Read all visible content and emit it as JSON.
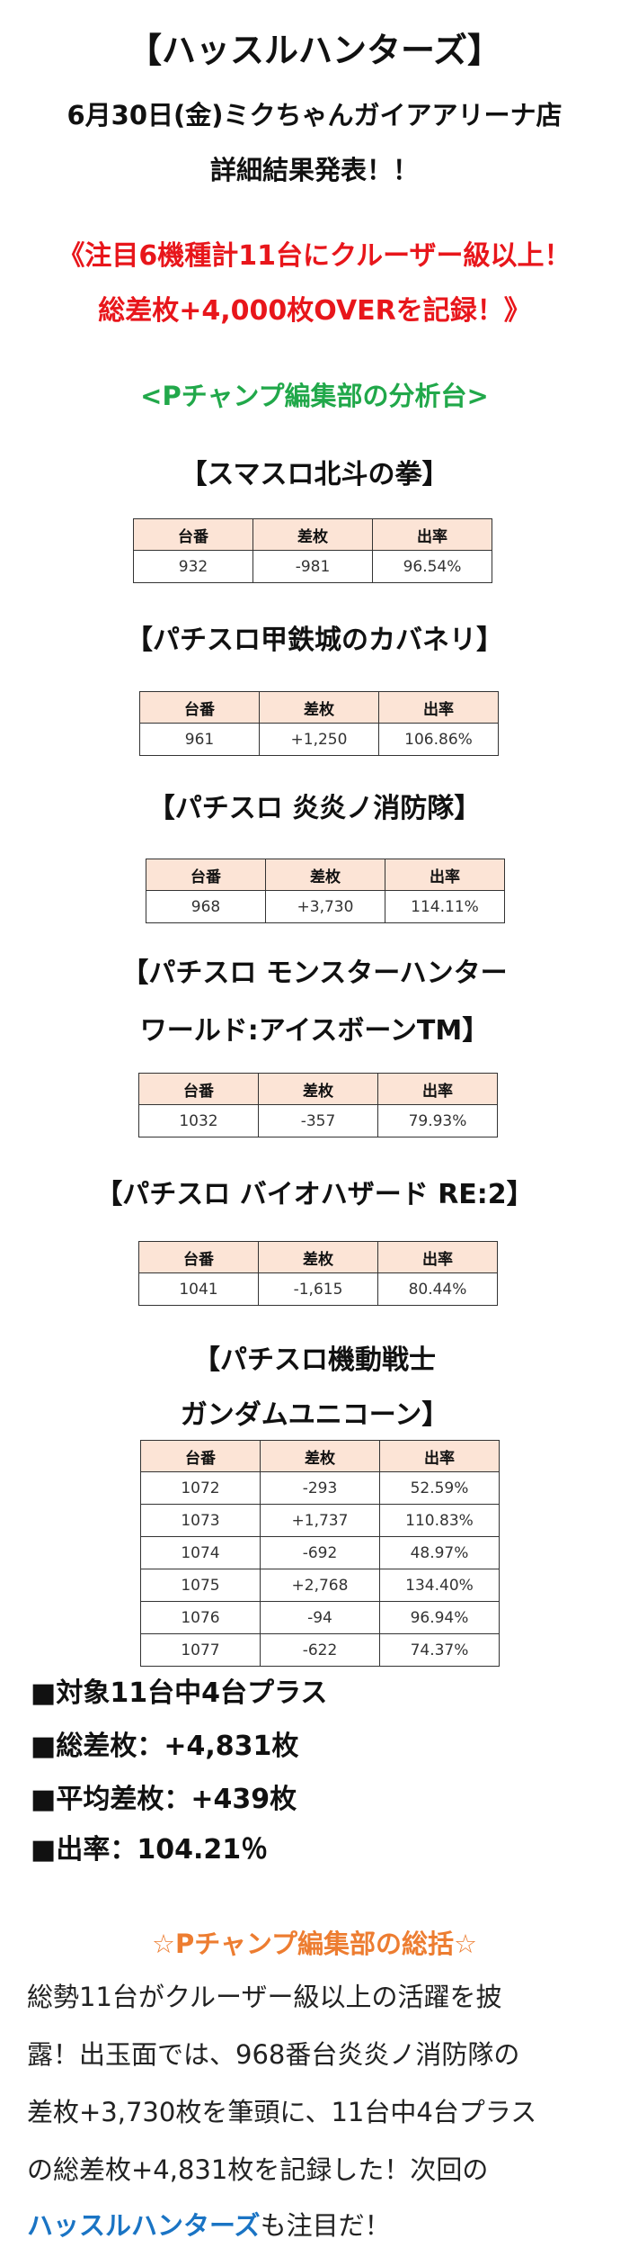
{
  "header": {
    "title": "【ハッスルハンターズ】",
    "date_store": "6月30日(金)ミクちゃんガイアアリーナ店",
    "subtitle": "詳細結果発表！！"
  },
  "headline": {
    "line1": "《注目6機種計11台にクルーザー級以上！",
    "line2": "総差枚+4,000枚OVERを記録！》"
  },
  "analysis_heading": "<Pチャンプ編集部の分析台>",
  "columns": [
    "台番",
    "差枚",
    "出率"
  ],
  "machines": [
    {
      "title_lines": [
        "【スマスロ北斗の拳】"
      ],
      "rows": [
        [
          "932",
          "-981",
          "96.54%"
        ]
      ]
    },
    {
      "title_lines": [
        "【パチスロ甲鉄城のカバネリ】"
      ],
      "rows": [
        [
          "961",
          "+1,250",
          "106.86%"
        ]
      ]
    },
    {
      "title_lines": [
        "【パチスロ 炎炎ノ消防隊】"
      ],
      "rows": [
        [
          "968",
          "+3,730",
          "114.11%"
        ]
      ]
    },
    {
      "title_lines": [
        "【パチスロ モンスターハンター",
        "ワールド:アイスボーンTM】"
      ],
      "rows": [
        [
          "1032",
          "-357",
          "79.93%"
        ]
      ]
    },
    {
      "title_lines": [
        "【パチスロ バイオハザード RE:2】"
      ],
      "rows": [
        [
          "1041",
          "-1,615",
          "80.44%"
        ]
      ]
    },
    {
      "title_lines": [
        "【パチスロ機動戦士",
        "ガンダムユニコーン】"
      ],
      "rows": [
        [
          "1072",
          "-293",
          "52.59%"
        ],
        [
          "1073",
          "+1,737",
          "110.83%"
        ],
        [
          "1074",
          "-692",
          "48.97%"
        ],
        [
          "1075",
          "+2,768",
          "134.40%"
        ],
        [
          "1076",
          "-94",
          "96.94%"
        ],
        [
          "1077",
          "-622",
          "74.37%"
        ]
      ]
    }
  ],
  "summary": [
    "■対象11台中4台プラス",
    "■総差枚：+4,831枚",
    "■平均差枚：+439枚",
    "■出率：104.21％"
  ],
  "review": {
    "heading": "☆Pチャンプ編集部の総括☆",
    "lines": [
      "総勢11台がクルーザー級以上の活躍を披",
      "露！出玉面では、968番台炎炎ノ消防隊の",
      "差枚+3,730枚を筆頭に、11台中4台プラス",
      "の総差枚+4,831枚を記録した！次回の"
    ],
    "last_line_highlight": "ハッスルハンターズ",
    "last_line_rest": "も注目だ！"
  },
  "colors": {
    "red": "#e8161b",
    "green": "#21a84a",
    "orange": "#ed7d31",
    "blue": "#1a74c4",
    "table_header": "#fce4d6"
  }
}
